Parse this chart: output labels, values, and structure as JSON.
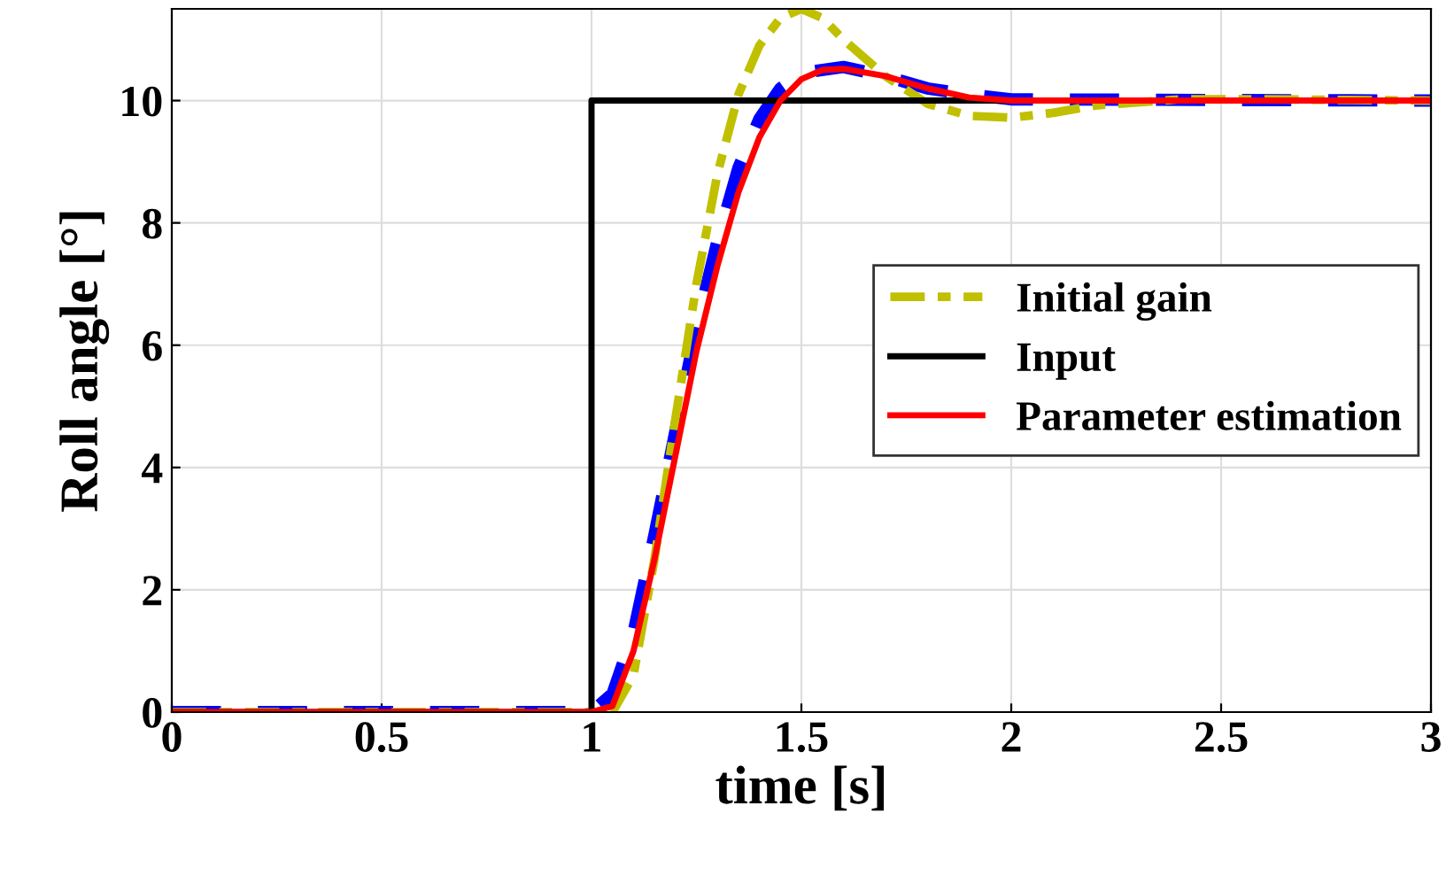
{
  "chart_data": {
    "type": "line",
    "xlabel": "time [s]",
    "ylabel": "Roll angle [°]",
    "xlim": [
      0,
      3
    ],
    "ylim": [
      0,
      11.5
    ],
    "xticks": [
      0,
      0.5,
      1,
      1.5,
      2,
      2.5,
      3
    ],
    "yticks": [
      0,
      2,
      4,
      6,
      8,
      10
    ],
    "grid": true,
    "legend": "right",
    "series": [
      {
        "color": "#0000ff",
        "line_style": "dashed",
        "x": [
          0,
          1,
          1.05,
          1.1,
          1.15,
          1.2,
          1.25,
          1.3,
          1.35,
          1.4,
          1.45,
          1.5,
          1.6,
          1.7,
          1.8,
          1.9,
          2.0,
          3
        ],
        "values": [
          0,
          0,
          0.3,
          1.3,
          2.9,
          4.6,
          6.3,
          7.7,
          8.9,
          9.7,
          10.2,
          10.45,
          10.55,
          10.4,
          10.2,
          10.1,
          10.02,
          10
        ]
      },
      {
        "name": "Initial gain",
        "color": "#c0c000",
        "line_style": "dashdot",
        "x": [
          0,
          1,
          1.05,
          1.1,
          1.15,
          1.2,
          1.25,
          1.3,
          1.35,
          1.4,
          1.45,
          1.5,
          1.55,
          1.6,
          1.7,
          1.8,
          1.9,
          2.0,
          2.1,
          2.2,
          2.4,
          2.6,
          3
        ],
        "values": [
          0,
          0,
          0,
          0.6,
          2.5,
          4.8,
          7.0,
          8.8,
          10.1,
          10.9,
          11.35,
          11.5,
          11.35,
          11.0,
          10.4,
          9.95,
          9.75,
          9.72,
          9.8,
          9.92,
          10.02,
          10.02,
          10
        ]
      },
      {
        "name": "Input",
        "color": "#000000",
        "line_style": "solid",
        "x": [
          0,
          1,
          1,
          3
        ],
        "values": [
          0,
          0,
          10,
          10
        ]
      },
      {
        "name": "Parameter estimation",
        "color": "#ff0000",
        "line_style": "solid",
        "x": [
          0,
          1,
          1.05,
          1.1,
          1.15,
          1.2,
          1.25,
          1.3,
          1.35,
          1.4,
          1.45,
          1.5,
          1.55,
          1.6,
          1.7,
          1.8,
          1.9,
          2.0,
          3
        ],
        "values": [
          0,
          0,
          0.1,
          1.0,
          2.5,
          4.2,
          5.9,
          7.3,
          8.5,
          9.4,
          10.0,
          10.35,
          10.5,
          10.52,
          10.4,
          10.2,
          10.05,
          10.0,
          10
        ]
      }
    ]
  }
}
